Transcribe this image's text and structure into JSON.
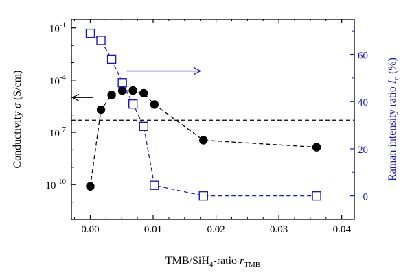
{
  "chart_data": {
    "type": "scatter",
    "title": "",
    "xlabel": "TMB/SiH4-ratio r_TMB",
    "ylabel_left": "Conductivity σ (S/cm)",
    "ylabel_right": "Raman intensity ratio I_c (%)",
    "xlim": [
      -0.003,
      0.042
    ],
    "y_left_scale": "log",
    "y_left_ticks_exponents": [
      -10,
      -7,
      -4,
      -1
    ],
    "y_left_lim_exponents": [
      -12.0,
      -0.5
    ],
    "y_right_lim": [
      -10,
      75
    ],
    "x_ticks": [
      0,
      0.01,
      0.02,
      0.03,
      0.04
    ],
    "x_tick_labels": [
      "0.00",
      "0.01",
      "0.02",
      "0.03",
      "0.04"
    ],
    "y_right_ticks": [
      0,
      20,
      40,
      60
    ],
    "y_right_tick_labels": [
      "0",
      "20",
      "40",
      "60"
    ],
    "series": [
      {
        "axis": "left",
        "marker": "filled-circle",
        "color": "#000000",
        "line": "dashed",
        "x": [
          0.0,
          0.0017,
          0.0034,
          0.0051,
          0.0068,
          0.0085,
          0.0102,
          0.018,
          0.036
        ],
        "log10_y": [
          -10.1,
          -5.7,
          -4.85,
          -4.6,
          -4.6,
          -4.75,
          -5.4,
          -7.45,
          -7.85
        ]
      },
      {
        "axis": "right",
        "marker": "open-square",
        "color": "#1a1ab8",
        "line": "dashed",
        "x": [
          0.0,
          0.0017,
          0.0034,
          0.0051,
          0.0068,
          0.0085,
          0.0102,
          0.018,
          0.036
        ],
        "y": [
          69,
          66,
          58,
          48,
          39,
          29.5,
          4.5,
          0,
          0
        ]
      }
    ],
    "reference_line": {
      "axis": "left",
      "log10_y": -6.3,
      "style": "dashed",
      "color": "#000000"
    },
    "annotations": [
      {
        "type": "arrow",
        "direction": "left",
        "color": "#000000",
        "x_from": 0.0005,
        "x_to": -0.0028,
        "log10_y": -5.0
      },
      {
        "type": "arrow",
        "direction": "right",
        "color": "#1a1ab8",
        "x_from": 0.0058,
        "x_to": 0.0175,
        "y_right": 53
      }
    ]
  },
  "labels": {
    "y_left_prefix": "10",
    "xlabel_main": "TMB/SiH",
    "xlabel_sub4": "4",
    "xlabel_mid": "-ratio ",
    "xlabel_r": "r",
    "xlabel_subTMB": "TMB",
    "ylabel_left_main": "Conductivity ",
    "ylabel_left_sigma": "σ",
    "ylabel_left_unit": " (S/cm)",
    "ylabel_right_main": "Raman intensity ratio ",
    "ylabel_right_I": "I",
    "ylabel_right_sub": "c",
    "ylabel_right_unit": " (%)"
  },
  "colors": {
    "left_axis": "#000000",
    "right_axis": "#1a1ab8"
  }
}
